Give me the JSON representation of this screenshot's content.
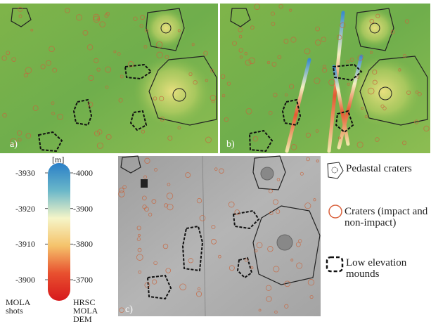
{
  "panels": {
    "a": "a)",
    "b": "b)",
    "c": "c)"
  },
  "colorbar": {
    "unit": "[m]",
    "left_ticks": [
      -3930,
      -3920,
      -3910,
      -3900
    ],
    "left_title": "MOLA shots",
    "right_ticks": [
      -4000,
      -3900,
      -3800,
      -3700
    ],
    "right_title": "HRSC MOLA DEM"
  },
  "legend": [
    "Pedastal craters",
    "Craters (impact and non-impact)",
    "Low elevation mounds"
  ]
}
